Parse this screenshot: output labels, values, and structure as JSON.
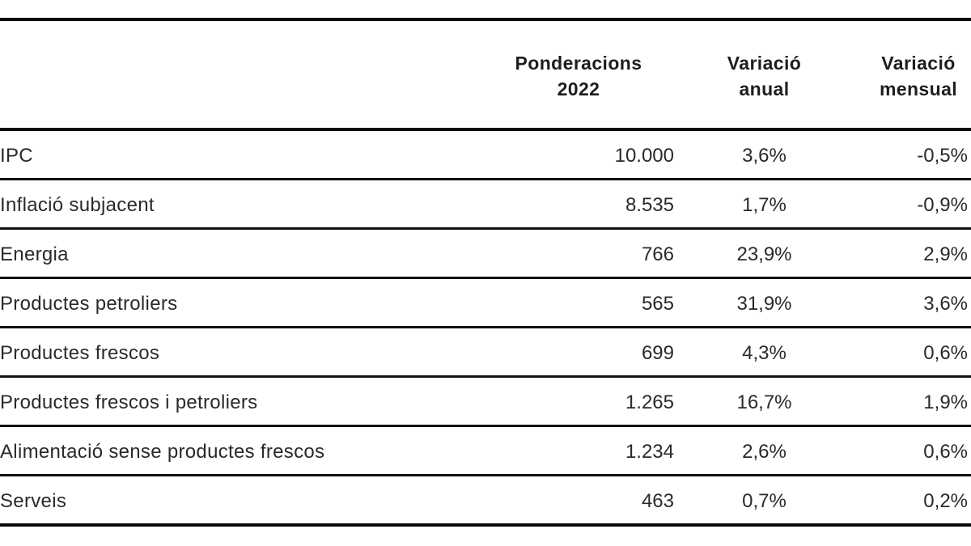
{
  "table": {
    "headers": {
      "label": "",
      "ponderacions_line1": "Ponderacions",
      "ponderacions_line2": "2022",
      "anual_line1": "Variació",
      "anual_line2": "anual",
      "mensual_line1": "Variació",
      "mensual_line2": "mensual"
    },
    "rows": [
      {
        "label": "IPC",
        "ponderacions": "10.000",
        "variacio_anual": "3,6%",
        "variacio_mensual": "-0,5%"
      },
      {
        "label": "Inflació subjacent",
        "ponderacions": "8.535",
        "variacio_anual": "1,7%",
        "variacio_mensual": "-0,9%"
      },
      {
        "label": "Energia",
        "ponderacions": "766",
        "variacio_anual": "23,9%",
        "variacio_mensual": "2,9%"
      },
      {
        "label": "Productes petroliers",
        "ponderacions": "565",
        "variacio_anual": "31,9%",
        "variacio_mensual": "3,6%"
      },
      {
        "label": "Productes frescos",
        "ponderacions": "699",
        "variacio_anual": "4,3%",
        "variacio_mensual": "0,6%"
      },
      {
        "label": "Productes frescos i petroliers",
        "ponderacions": "1.265",
        "variacio_anual": "16,7%",
        "variacio_mensual": "1,9%"
      },
      {
        "label": "Alimentació sense productes frescos",
        "ponderacions": "1.234",
        "variacio_anual": "2,6%",
        "variacio_mensual": "0,6%"
      },
      {
        "label": "Serveis",
        "ponderacions": "463",
        "variacio_anual": "0,7%",
        "variacio_mensual": "0,2%"
      }
    ]
  }
}
